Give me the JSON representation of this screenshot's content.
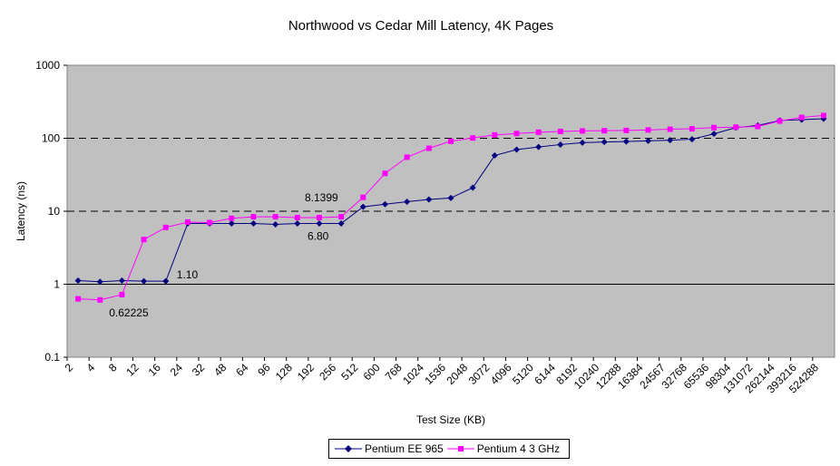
{
  "chart_data": {
    "type": "line",
    "title": "Northwood vs Cedar Mill Latency, 4K Pages",
    "xlabel": "Test Size (KB)",
    "ylabel": "Latency (ns)",
    "yscale": "log",
    "ylim": [
      0.1,
      1000
    ],
    "yticks": [
      "0.1",
      "1",
      "10",
      "100",
      "1000"
    ],
    "grid": "dashed major horizontal lines",
    "legend_position": "bottom",
    "categories": [
      "2",
      "4",
      "8",
      "12",
      "16",
      "24",
      "32",
      "48",
      "64",
      "96",
      "128",
      "192",
      "256",
      "512",
      "600",
      "768",
      "1024",
      "1536",
      "2048",
      "3072",
      "4096",
      "5120",
      "6144",
      "8192",
      "10240",
      "12288",
      "16384",
      "24567",
      "32768",
      "65536",
      "98304",
      "131072",
      "262144",
      "393216",
      "524288"
    ],
    "series": [
      {
        "name": "Pentium EE 965",
        "color": "#000080",
        "marker": "diamond",
        "values": [
          1.12,
          1.08,
          1.12,
          1.1,
          1.1,
          6.8,
          6.8,
          6.8,
          6.8,
          6.6,
          6.8,
          6.8,
          6.8,
          11.5,
          12.5,
          13.5,
          14.5,
          15.2,
          21,
          58,
          70,
          76,
          82,
          87,
          89,
          90,
          92,
          94,
          97,
          115,
          140,
          150,
          175,
          180,
          185
        ]
      },
      {
        "name": "Pentium 4 3 GHz",
        "color": "#FF00FF",
        "marker": "square",
        "values": [
          0.63,
          0.61,
          0.72,
          4.1,
          6.0,
          7.1,
          7.0,
          8.0,
          8.4,
          8.4,
          8.2,
          8.2,
          8.4,
          15.5,
          33,
          55,
          73,
          91,
          101,
          111,
          116,
          121,
          124,
          126,
          127,
          128,
          130,
          133,
          135,
          140,
          142,
          145,
          172,
          193,
          205
        ]
      }
    ],
    "annotations": [
      {
        "text": "1.10"
      },
      {
        "text": "0.62225"
      },
      {
        "text": "8.1399"
      },
      {
        "text": "6.80"
      }
    ]
  }
}
